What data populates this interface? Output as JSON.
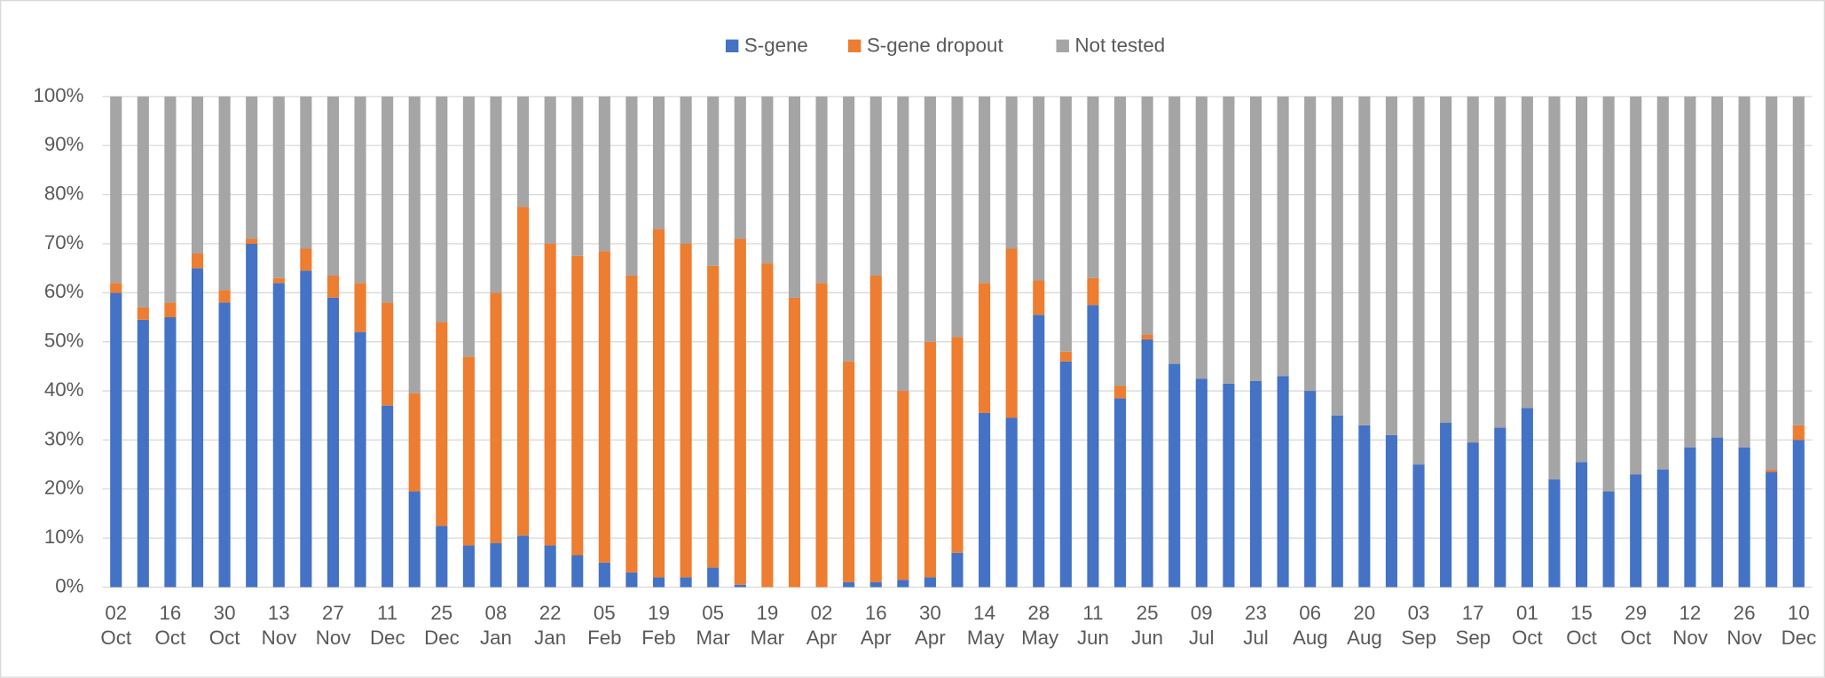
{
  "chart_data": {
    "type": "stacked_bar",
    "categories": [
      "02 Oct",
      null,
      "16 Oct",
      null,
      "30 Oct",
      null,
      "13 Nov",
      null,
      "27 Nov",
      null,
      "11 Dec",
      null,
      "25 Dec",
      null,
      "08 Jan",
      null,
      "22 Jan",
      null,
      "05 Feb",
      null,
      "19 Feb",
      null,
      "05 Mar",
      null,
      "19 Mar",
      null,
      "02 Apr",
      null,
      "16 Apr",
      null,
      "30 Apr",
      null,
      "14 May",
      null,
      "28 May",
      null,
      "11 Jun",
      null,
      "25 Jun",
      null,
      "09 Jul",
      null,
      "23 Jul",
      null,
      "06 Aug",
      null,
      "20 Aug",
      null,
      "03 Sep",
      null,
      "17 Sep",
      null,
      "01 Oct",
      null,
      "15 Oct",
      null,
      "29 Oct",
      null,
      "12 Nov",
      null,
      "26 Nov",
      null,
      "10 Dec"
    ],
    "series": [
      {
        "name": "S-gene",
        "color": "#4472c4",
        "values": [
          60,
          54.5,
          55,
          65,
          58,
          70,
          62,
          64.5,
          59,
          52,
          37,
          19.5,
          12.5,
          8.5,
          9,
          10.5,
          8.5,
          6.5,
          5,
          3,
          2,
          2,
          4,
          0.5,
          0,
          0,
          0,
          1,
          1,
          1.5,
          2,
          7,
          35.5,
          34.5,
          55.5,
          46,
          57.5,
          38.5,
          50.5,
          45.5,
          42.5,
          41.5,
          42,
          43,
          40,
          35,
          33,
          31,
          25,
          33.5,
          29.5,
          32.5,
          36.5,
          22,
          25.5,
          19.5,
          23,
          24,
          28.5,
          30.5,
          28.5,
          23.5,
          30
        ]
      },
      {
        "name": "S-gene dropout",
        "color": "#ed7d31",
        "values": [
          2,
          2.5,
          3,
          3,
          2.5,
          1,
          1,
          4.5,
          4.5,
          10,
          21,
          20,
          41.5,
          38.5,
          51,
          67,
          61.5,
          61,
          63.5,
          60.5,
          71,
          68,
          61.5,
          70.5,
          66,
          59,
          62,
          45,
          62.5,
          38.5,
          48,
          44,
          26.5,
          34.5,
          7,
          2,
          5.5,
          2.5,
          1,
          0,
          0,
          0,
          0,
          0,
          0,
          0,
          0,
          0,
          0,
          0,
          0,
          0,
          0,
          0,
          0,
          0,
          0,
          0,
          0,
          0,
          0,
          0.5,
          3
        ]
      },
      {
        "name": "Not tested",
        "color": "#a5a5a5",
        "values": [
          38,
          43,
          42,
          32,
          39.5,
          29,
          37,
          31,
          36.5,
          38,
          42,
          60.5,
          46,
          53,
          40,
          22.5,
          30,
          32.5,
          31.5,
          36.5,
          27,
          30,
          34.5,
          29,
          34,
          41,
          38,
          54,
          36.5,
          60,
          50,
          49,
          38,
          31,
          37.5,
          52,
          37,
          59,
          48.5,
          54.5,
          57.5,
          58.5,
          58,
          57,
          60,
          65,
          67,
          69,
          75,
          66.5,
          70.5,
          67.5,
          63.5,
          78,
          74.5,
          80.5,
          77,
          76,
          71.5,
          69.5,
          71.5,
          76,
          67
        ]
      }
    ],
    "ylim": [
      0,
      100
    ],
    "yticks": [
      {
        "value": 0,
        "label": "0%"
      },
      {
        "value": 10,
        "label": "10%"
      },
      {
        "value": 20,
        "label": "20%"
      },
      {
        "value": 30,
        "label": "30%"
      },
      {
        "value": 40,
        "label": "40%"
      },
      {
        "value": 50,
        "label": "50%"
      },
      {
        "value": 60,
        "label": "60%"
      },
      {
        "value": 70,
        "label": "70%"
      },
      {
        "value": 80,
        "label": "80%"
      },
      {
        "value": 90,
        "label": "90%"
      },
      {
        "value": 100,
        "label": "100%"
      }
    ],
    "grid": true,
    "legend": "top"
  }
}
